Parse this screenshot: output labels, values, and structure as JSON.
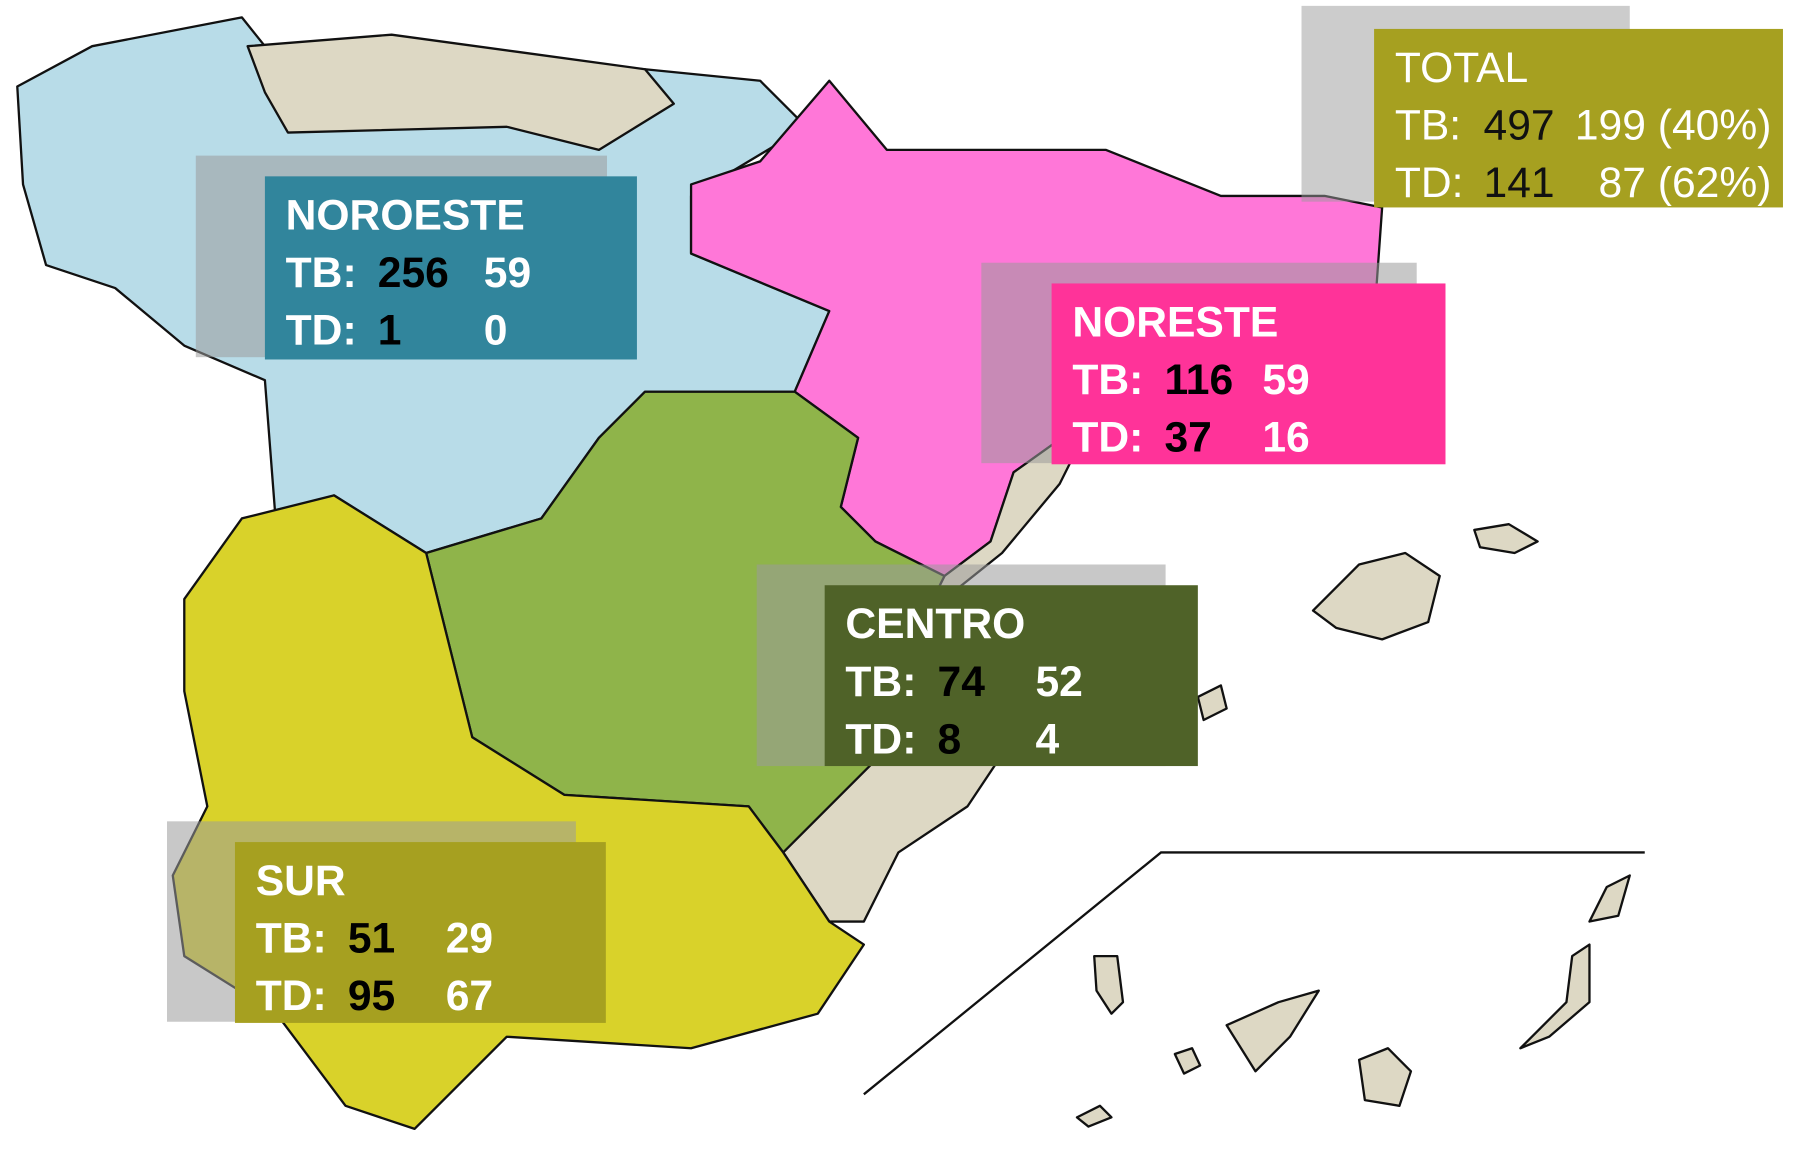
{
  "panels": [
    {
      "title": "TOTAL",
      "rows": [
        {
          "label": "TB:",
          "a": "497",
          "b": "199 (40%)"
        },
        {
          "label": "TD:",
          "a": "141",
          "b": "87 (62%)"
        }
      ]
    },
    {
      "title": "NOROESTE",
      "rows": [
        {
          "label": "TB:",
          "a": "256",
          "b": "59"
        },
        {
          "label": "TD:",
          "a": "1",
          "b": "0"
        }
      ]
    },
    {
      "title": "NORESTE",
      "rows": [
        {
          "label": "TB:",
          "a": "116",
          "b": "59"
        },
        {
          "label": "TD:",
          "a": "37",
          "b": "16"
        }
      ]
    },
    {
      "title": "CENTRO",
      "rows": [
        {
          "label": "TB:",
          "a": "74",
          "b": "52"
        },
        {
          "label": "TD:",
          "a": "8",
          "b": "4"
        }
      ]
    },
    {
      "title": "SUR",
      "rows": [
        {
          "label": "TB:",
          "a": "51",
          "b": "29"
        },
        {
          "label": "TD:",
          "a": "95",
          "b": "67"
        }
      ]
    }
  ]
}
